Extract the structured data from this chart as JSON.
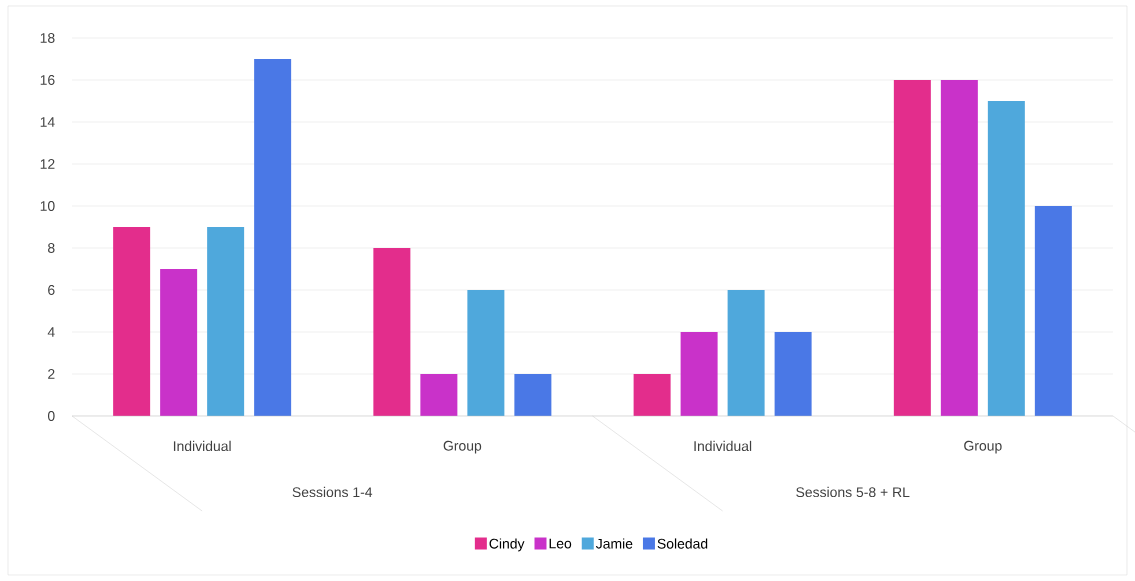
{
  "chart_data": {
    "type": "bar",
    "categories": [
      "Individual",
      "Group",
      "Individual",
      "Group"
    ],
    "series": [
      {
        "name": "Cindy",
        "color": "#e32d8c",
        "values": [
          9,
          8,
          2,
          16
        ]
      },
      {
        "name": "Leo",
        "color": "#c932c9",
        "values": [
          7,
          2,
          4,
          16
        ]
      },
      {
        "name": "Jamie",
        "color": "#4fa8dc",
        "values": [
          9,
          6,
          6,
          15
        ]
      },
      {
        "name": "Soledad",
        "color": "#4a78e6",
        "values": [
          17,
          2,
          4,
          10
        ]
      }
    ],
    "annotations": [
      "Sessions 1-4",
      "Sessions 5-8 + RL"
    ],
    "ylim": [
      0,
      18
    ],
    "yticks": [
      0,
      2,
      4,
      6,
      8,
      10,
      12,
      14,
      16,
      18
    ],
    "grid": "y",
    "legend": "bottom"
  }
}
